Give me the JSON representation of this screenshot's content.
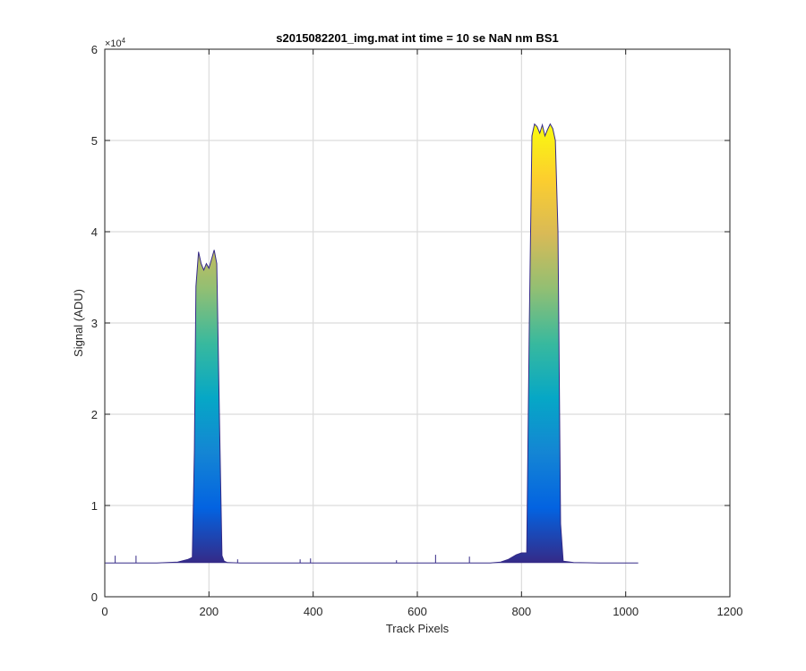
{
  "chart_data": {
    "type": "area",
    "title": "s2015082201_img.mat int time = 10 se  NaN nm BS1",
    "xlabel": "Track Pixels",
    "ylabel": "Signal (ADU)",
    "xlim": [
      0,
      1200
    ],
    "ylim": [
      0,
      60000
    ],
    "xticks": [
      0,
      200,
      400,
      600,
      800,
      1000,
      1200
    ],
    "xtick_labels": [
      "0",
      "200",
      "400",
      "600",
      "800",
      "1000",
      "1200"
    ],
    "yticks": [
      0,
      10000,
      20000,
      30000,
      40000,
      50000,
      60000
    ],
    "ytick_labels": [
      "0",
      "1",
      "2",
      "3",
      "4",
      "5",
      "6"
    ],
    "y_exponent": {
      "base": "×10",
      "power": "4"
    },
    "grid": true,
    "colormap": "parula",
    "colormap_stops": [
      "#352a87",
      "#0363e1",
      "#1485d4",
      "#06a7c6",
      "#38b99e",
      "#92bf73",
      "#d9ba56",
      "#fcce2e",
      "#f9fb0e"
    ],
    "series": [
      {
        "x": [
          1,
          60,
          100,
          140,
          160,
          168,
          172,
          175,
          180,
          185,
          190,
          195,
          200,
          205,
          210,
          215,
          220,
          225,
          229,
          235,
          260,
          300,
          400,
          500,
          600,
          700,
          740,
          760,
          775,
          790,
          800,
          810,
          815,
          820,
          825,
          830,
          835,
          840,
          845,
          850,
          855,
          860,
          865,
          870,
          875,
          880,
          900,
          950,
          1000,
          1024
        ],
        "y": [
          3700,
          3700,
          3700,
          3800,
          4100,
          4300,
          16000,
          34000,
          37800,
          36500,
          35800,
          36500,
          36000,
          37000,
          38000,
          36500,
          20000,
          4500,
          3900,
          3750,
          3700,
          3700,
          3700,
          3700,
          3700,
          3700,
          3700,
          3800,
          4100,
          4600,
          4800,
          4800,
          30000,
          50500,
          51800,
          51500,
          50800,
          51700,
          50500,
          51200,
          51800,
          51300,
          50000,
          40000,
          8000,
          3900,
          3750,
          3700,
          3700,
          3700
        ]
      }
    ],
    "spikes": [
      {
        "x": 20,
        "y": 4500
      },
      {
        "x": 60,
        "y": 4500
      },
      {
        "x": 255,
        "y": 4100
      },
      {
        "x": 375,
        "y": 4100
      },
      {
        "x": 395,
        "y": 4200
      },
      {
        "x": 560,
        "y": 4000
      },
      {
        "x": 635,
        "y": 4600
      },
      {
        "x": 700,
        "y": 4400
      }
    ]
  }
}
